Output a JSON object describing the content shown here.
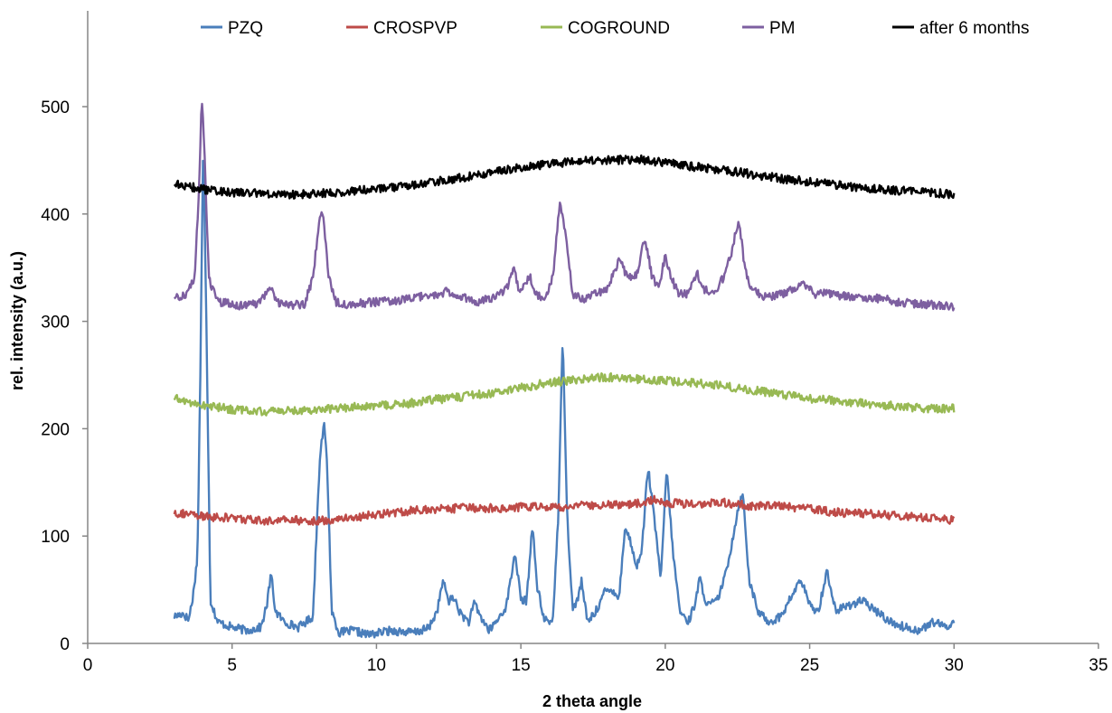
{
  "chart_data": {
    "type": "line",
    "title": "",
    "xlabel": "2 theta angle",
    "ylabel": "rel. intensity (a.u.)",
    "xlim": [
      0,
      35
    ],
    "ylim": [
      0,
      550
    ],
    "xticks": [
      "0",
      "5",
      "10",
      "15",
      "20",
      "25",
      "30",
      "35"
    ],
    "yticks": [
      "0",
      "100",
      "200",
      "300",
      "400",
      "500"
    ],
    "grid": false,
    "legend": "top",
    "series": [
      {
        "name": "PZQ",
        "color": "#4a7ebb",
        "points": [
          [
            3.0,
            25
          ],
          [
            3.3,
            28
          ],
          [
            3.5,
            22
          ],
          [
            3.65,
            45
          ],
          [
            3.8,
            80
          ],
          [
            3.9,
            250
          ],
          [
            4.0,
            470
          ],
          [
            4.1,
            320
          ],
          [
            4.25,
            40
          ],
          [
            4.5,
            20
          ],
          [
            5.0,
            15
          ],
          [
            5.5,
            12
          ],
          [
            6.0,
            15
          ],
          [
            6.2,
            35
          ],
          [
            6.35,
            65
          ],
          [
            6.5,
            30
          ],
          [
            6.8,
            20
          ],
          [
            7.3,
            15
          ],
          [
            7.8,
            25
          ],
          [
            7.95,
            120
          ],
          [
            8.05,
            180
          ],
          [
            8.2,
            204
          ],
          [
            8.3,
            160
          ],
          [
            8.45,
            30
          ],
          [
            8.7,
            10
          ],
          [
            9.2,
            12
          ],
          [
            9.7,
            8
          ],
          [
            10.5,
            12
          ],
          [
            11.3,
            10
          ],
          [
            11.8,
            14
          ],
          [
            12.1,
            30
          ],
          [
            12.3,
            58
          ],
          [
            12.5,
            40
          ],
          [
            12.7,
            42
          ],
          [
            12.9,
            28
          ],
          [
            13.2,
            20
          ],
          [
            13.4,
            38
          ],
          [
            13.6,
            25
          ],
          [
            13.9,
            12
          ],
          [
            14.2,
            22
          ],
          [
            14.5,
            35
          ],
          [
            14.8,
            85
          ],
          [
            15.0,
            40
          ],
          [
            15.2,
            40
          ],
          [
            15.4,
            112
          ],
          [
            15.55,
            55
          ],
          [
            15.8,
            22
          ],
          [
            16.1,
            20
          ],
          [
            16.3,
            120
          ],
          [
            16.45,
            290
          ],
          [
            16.6,
            120
          ],
          [
            16.8,
            30
          ],
          [
            17.0,
            45
          ],
          [
            17.1,
            58
          ],
          [
            17.3,
            20
          ],
          [
            17.6,
            30
          ],
          [
            17.9,
            48
          ],
          [
            18.2,
            50
          ],
          [
            18.4,
            42
          ],
          [
            18.6,
            108
          ],
          [
            18.8,
            95
          ],
          [
            19.0,
            70
          ],
          [
            19.2,
            90
          ],
          [
            19.4,
            165
          ],
          [
            19.6,
            120
          ],
          [
            19.85,
            60
          ],
          [
            20.05,
            163
          ],
          [
            20.25,
            90
          ],
          [
            20.5,
            30
          ],
          [
            20.8,
            20
          ],
          [
            21.0,
            35
          ],
          [
            21.2,
            60
          ],
          [
            21.45,
            35
          ],
          [
            21.8,
            40
          ],
          [
            22.1,
            65
          ],
          [
            22.35,
            100
          ],
          [
            22.55,
            130
          ],
          [
            22.7,
            138
          ],
          [
            22.9,
            60
          ],
          [
            23.2,
            30
          ],
          [
            23.6,
            20
          ],
          [
            24.0,
            25
          ],
          [
            24.3,
            40
          ],
          [
            24.7,
            60
          ],
          [
            25.0,
            35
          ],
          [
            25.3,
            30
          ],
          [
            25.6,
            68
          ],
          [
            25.9,
            30
          ],
          [
            26.3,
            35
          ],
          [
            26.8,
            40
          ],
          [
            27.3,
            30
          ],
          [
            27.8,
            20
          ],
          [
            28.3,
            15
          ],
          [
            28.8,
            12
          ],
          [
            29.3,
            20
          ],
          [
            29.7,
            15
          ],
          [
            30.0,
            20
          ]
        ]
      },
      {
        "name": "CROSPVP",
        "color": "#be4b48",
        "points": [
          [
            3.0,
            122
          ],
          [
            4.0,
            118
          ],
          [
            5.0,
            117
          ],
          [
            6.0,
            114
          ],
          [
            7.0,
            115
          ],
          [
            8.0,
            114
          ],
          [
            9.0,
            117
          ],
          [
            10.0,
            120
          ],
          [
            11.0,
            123
          ],
          [
            12.0,
            125
          ],
          [
            13.0,
            126
          ],
          [
            14.0,
            126
          ],
          [
            15.0,
            127
          ],
          [
            16.0,
            127
          ],
          [
            17.0,
            128
          ],
          [
            18.0,
            129
          ],
          [
            19.0,
            130
          ],
          [
            19.7,
            135
          ],
          [
            20.0,
            131
          ],
          [
            21.0,
            130
          ],
          [
            22.0,
            131
          ],
          [
            23.0,
            128
          ],
          [
            24.0,
            128
          ],
          [
            25.0,
            125
          ],
          [
            26.0,
            122
          ],
          [
            27.0,
            121
          ],
          [
            28.0,
            119
          ],
          [
            29.0,
            117
          ],
          [
            30.0,
            115
          ]
        ]
      },
      {
        "name": "COGROUND",
        "color": "#98b954",
        "points": [
          [
            3.0,
            228
          ],
          [
            4.0,
            222
          ],
          [
            5.0,
            218
          ],
          [
            6.0,
            216
          ],
          [
            7.0,
            217
          ],
          [
            8.0,
            218
          ],
          [
            9.0,
            220
          ],
          [
            10.0,
            221
          ],
          [
            11.0,
            223
          ],
          [
            12.0,
            227
          ],
          [
            13.0,
            230
          ],
          [
            14.0,
            233
          ],
          [
            15.0,
            238
          ],
          [
            16.0,
            243
          ],
          [
            17.0,
            246
          ],
          [
            18.0,
            248
          ],
          [
            19.0,
            246
          ],
          [
            20.0,
            245
          ],
          [
            21.0,
            243
          ],
          [
            22.0,
            240
          ],
          [
            23.0,
            236
          ],
          [
            24.0,
            232
          ],
          [
            25.0,
            228
          ],
          [
            26.0,
            226
          ],
          [
            27.0,
            223
          ],
          [
            28.0,
            221
          ],
          [
            29.0,
            219
          ],
          [
            30.0,
            219
          ]
        ]
      },
      {
        "name": "PM",
        "color": "#7d5fa0",
        "points": [
          [
            3.0,
            322
          ],
          [
            3.4,
            325
          ],
          [
            3.7,
            340
          ],
          [
            3.85,
            420
          ],
          [
            3.95,
            510
          ],
          [
            4.05,
            450
          ],
          [
            4.2,
            340
          ],
          [
            4.5,
            318
          ],
          [
            5.0,
            316
          ],
          [
            5.5,
            314
          ],
          [
            6.0,
            318
          ],
          [
            6.3,
            332
          ],
          [
            6.6,
            318
          ],
          [
            7.0,
            315
          ],
          [
            7.5,
            316
          ],
          [
            7.8,
            340
          ],
          [
            8.0,
            390
          ],
          [
            8.15,
            402
          ],
          [
            8.35,
            340
          ],
          [
            8.6,
            318
          ],
          [
            9.0,
            316
          ],
          [
            10.0,
            318
          ],
          [
            11.0,
            320
          ],
          [
            12.0,
            325
          ],
          [
            12.5,
            328
          ],
          [
            13.0,
            322
          ],
          [
            13.5,
            318
          ],
          [
            14.0,
            322
          ],
          [
            14.5,
            330
          ],
          [
            14.75,
            350
          ],
          [
            14.95,
            325
          ],
          [
            15.3,
            342
          ],
          [
            15.5,
            328
          ],
          [
            15.8,
            318
          ],
          [
            16.1,
            340
          ],
          [
            16.35,
            412
          ],
          [
            16.55,
            380
          ],
          [
            16.8,
            325
          ],
          [
            17.2,
            320
          ],
          [
            17.6,
            326
          ],
          [
            18.0,
            330
          ],
          [
            18.4,
            358
          ],
          [
            18.7,
            340
          ],
          [
            19.0,
            342
          ],
          [
            19.3,
            378
          ],
          [
            19.55,
            340
          ],
          [
            19.8,
            332
          ],
          [
            20.0,
            362
          ],
          [
            20.2,
            340
          ],
          [
            20.5,
            325
          ],
          [
            20.8,
            325
          ],
          [
            21.1,
            345
          ],
          [
            21.3,
            330
          ],
          [
            21.7,
            328
          ],
          [
            22.0,
            340
          ],
          [
            22.3,
            365
          ],
          [
            22.55,
            395
          ],
          [
            22.75,
            350
          ],
          [
            23.0,
            330
          ],
          [
            23.5,
            322
          ],
          [
            24.0,
            325
          ],
          [
            24.5,
            330
          ],
          [
            24.8,
            334
          ],
          [
            25.2,
            325
          ],
          [
            25.6,
            326
          ],
          [
            26.0,
            324
          ],
          [
            26.5,
            322
          ],
          [
            27.0,
            320
          ],
          [
            27.5,
            322
          ],
          [
            28.0,
            318
          ],
          [
            29.0,
            316
          ],
          [
            30.0,
            314
          ]
        ]
      },
      {
        "name": "after 6 months",
        "color": "#000000",
        "points": [
          [
            3.0,
            428
          ],
          [
            4.0,
            423
          ],
          [
            5.0,
            420
          ],
          [
            6.0,
            419
          ],
          [
            7.0,
            418
          ],
          [
            8.0,
            419
          ],
          [
            9.0,
            421
          ],
          [
            10.0,
            423
          ],
          [
            11.0,
            426
          ],
          [
            12.0,
            430
          ],
          [
            13.0,
            434
          ],
          [
            14.0,
            439
          ],
          [
            15.0,
            443
          ],
          [
            16.0,
            447
          ],
          [
            17.0,
            449
          ],
          [
            18.0,
            450
          ],
          [
            19.0,
            451
          ],
          [
            20.0,
            448
          ],
          [
            21.0,
            444
          ],
          [
            22.0,
            441
          ],
          [
            23.0,
            437
          ],
          [
            24.0,
            433
          ],
          [
            25.0,
            430
          ],
          [
            26.0,
            427
          ],
          [
            27.0,
            424
          ],
          [
            28.0,
            422
          ],
          [
            29.0,
            420
          ],
          [
            30.0,
            418
          ]
        ]
      }
    ]
  }
}
